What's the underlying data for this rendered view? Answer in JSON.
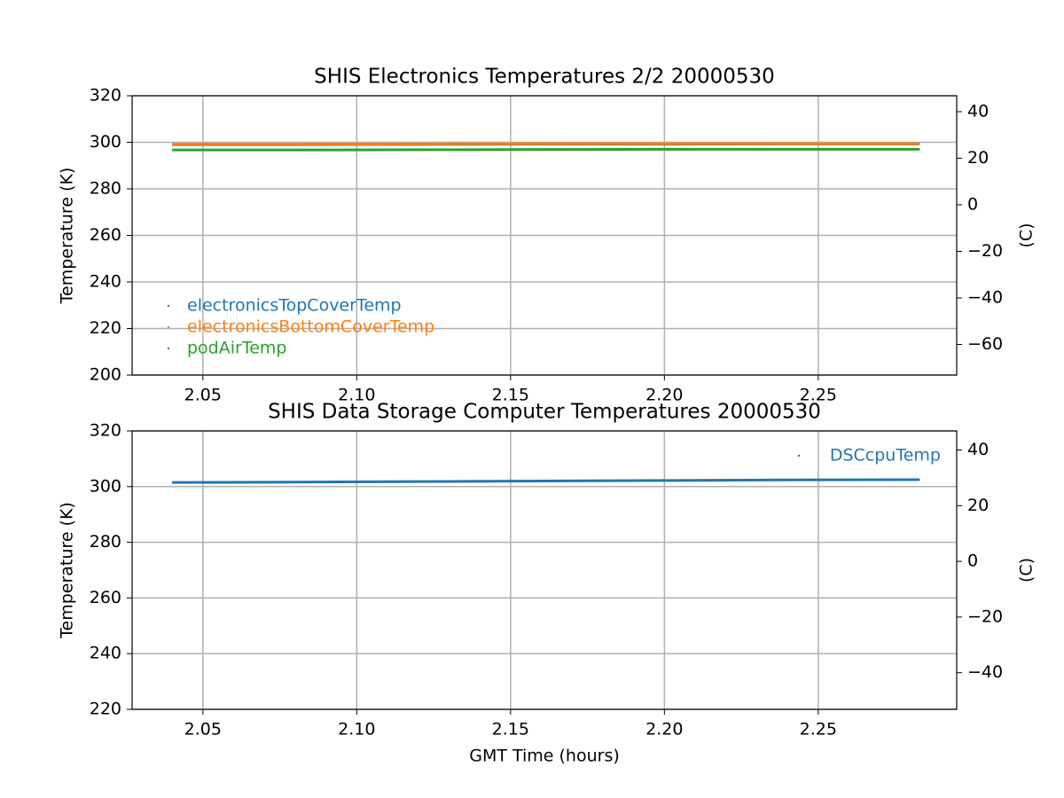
{
  "chart_data": [
    {
      "type": "line",
      "title": "SHIS Electronics Temperatures 2/2 20000530",
      "ylabel": "Temperature (K)",
      "y2label": "(C)",
      "xlim": [
        2.027,
        2.295
      ],
      "xticks": [
        2.05,
        {
          "value": 2.1,
          "label": "2.10"
        },
        2.15,
        {
          "value": 2.2,
          "label": "2.20"
        },
        2.25
      ],
      "ylim": [
        200,
        320
      ],
      "yticks": [
        200,
        220,
        240,
        260,
        280,
        300,
        320
      ],
      "y2lim": [
        -73.15,
        46.85
      ],
      "y2ticks": [
        {
          "value": -60,
          "label": "−60"
        },
        {
          "value": -40,
          "label": "−40"
        },
        {
          "value": -20,
          "label": "−20"
        },
        0,
        20,
        40
      ],
      "grid": true,
      "legend": "lower left",
      "x": [
        2.04,
        2.08,
        2.12,
        2.16,
        2.2,
        2.24,
        2.283
      ],
      "series": [
        {
          "name": "electronicsTopCoverTemp",
          "color": "#1f77b4",
          "values": [
            299.0,
            299.0,
            299.1,
            299.2,
            299.2,
            299.3,
            299.3
          ]
        },
        {
          "name": "electronicsBottomCoverTemp",
          "color": "#ff7f0e",
          "values": [
            299.2,
            299.2,
            299.3,
            299.4,
            299.4,
            299.4,
            299.4
          ]
        },
        {
          "name": "podAirTemp",
          "color": "#2ca02c",
          "values": [
            296.7,
            296.7,
            296.8,
            296.9,
            297.0,
            297.0,
            297.0
          ]
        }
      ]
    },
    {
      "type": "line",
      "title": "SHIS Data Storage Computer Temperatures 20000530",
      "xlabel": "GMT Time (hours)",
      "ylabel": "Temperature (K)",
      "y2label": "(C)",
      "xlim": [
        2.027,
        2.295
      ],
      "xticks": [
        2.05,
        {
          "value": 2.1,
          "label": "2.10"
        },
        2.15,
        {
          "value": 2.2,
          "label": "2.20"
        },
        2.25
      ],
      "ylim": [
        220,
        320
      ],
      "yticks": [
        220,
        240,
        260,
        280,
        300,
        320
      ],
      "y2lim": [
        -53.15,
        46.85
      ],
      "y2ticks": [
        {
          "value": -40,
          "label": "−40"
        },
        {
          "value": -20,
          "label": "−20"
        },
        0,
        20,
        40
      ],
      "grid": true,
      "legend": "upper right",
      "x": [
        2.04,
        2.08,
        2.12,
        2.16,
        2.2,
        2.24,
        2.283
      ],
      "series": [
        {
          "name": "DSCcpuTemp",
          "color": "#1f77b4",
          "values": [
            301.5,
            301.6,
            301.8,
            302.0,
            302.2,
            302.4,
            302.5
          ]
        }
      ]
    }
  ]
}
